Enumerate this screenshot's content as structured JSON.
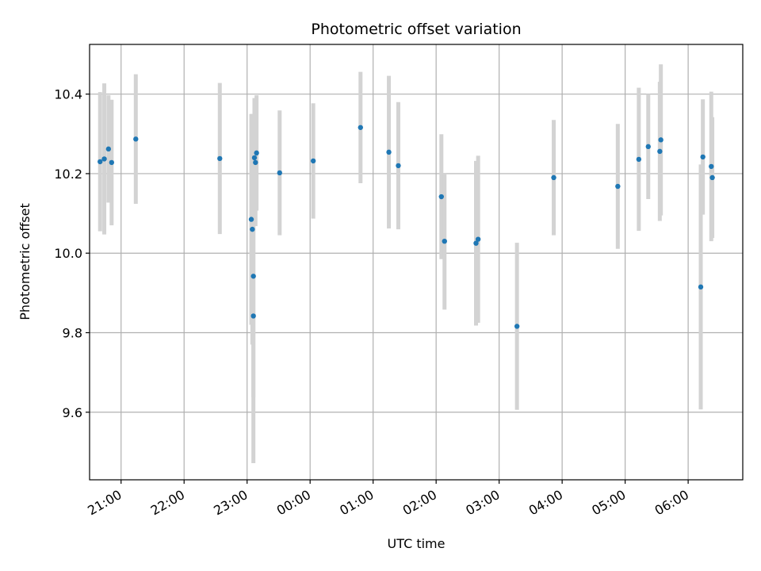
{
  "chart_data": {
    "type": "scatter",
    "title": "Photometric offset variation",
    "xlabel": "UTC time",
    "ylabel": "Photometric offset",
    "grid": true,
    "xlim": [
      "20:30",
      "06:52"
    ],
    "ylim": [
      9.43,
      10.525
    ],
    "x_ticks": [
      "21:00",
      "22:00",
      "23:00",
      "00:00",
      "01:00",
      "02:00",
      "03:00",
      "04:00",
      "05:00",
      "06:00"
    ],
    "y_ticks": [
      9.6,
      9.8,
      10.0,
      10.2,
      10.4
    ],
    "marker_color": "#1f77b4",
    "errorbar_color": "#d3d3d3",
    "points": [
      {
        "time": "20:40",
        "y": 10.23,
        "err": 0.175
      },
      {
        "time": "20:44",
        "y": 10.237,
        "err": 0.19
      },
      {
        "time": "20:48",
        "y": 10.262,
        "err": 0.135
      },
      {
        "time": "20:51",
        "y": 10.228,
        "err": 0.158
      },
      {
        "time": "21:14",
        "y": 10.287,
        "err": 0.163
      },
      {
        "time": "22:34",
        "y": 10.238,
        "err": 0.19
      },
      {
        "time": "23:04",
        "y": 10.085,
        "err": 0.265
      },
      {
        "time": "23:05",
        "y": 10.06,
        "err": 0.29
      },
      {
        "time": "23:06",
        "y": 9.942,
        "err": 0.305
      },
      {
        "time": "23:06",
        "y": 9.842,
        "err": 0.37
      },
      {
        "time": "23:07",
        "y": 10.24,
        "err": 0.15
      },
      {
        "time": "23:08",
        "y": 10.228,
        "err": 0.16
      },
      {
        "time": "23:09",
        "y": 10.252,
        "err": 0.145
      },
      {
        "time": "23:31",
        "y": 10.202,
        "err": 0.157
      },
      {
        "time": "00:03",
        "y": 10.232,
        "err": 0.145
      },
      {
        "time": "00:48",
        "y": 10.316,
        "err": 0.14
      },
      {
        "time": "01:15",
        "y": 10.254,
        "err": 0.192
      },
      {
        "time": "01:24",
        "y": 10.22,
        "err": 0.16
      },
      {
        "time": "02:05",
        "y": 10.142,
        "err": 0.157
      },
      {
        "time": "02:08",
        "y": 10.03,
        "err": 0.172
      },
      {
        "time": "02:38",
        "y": 10.025,
        "err": 0.207
      },
      {
        "time": "02:40",
        "y": 10.035,
        "err": 0.21
      },
      {
        "time": "03:17",
        "y": 9.816,
        "err": 0.21
      },
      {
        "time": "03:52",
        "y": 10.19,
        "err": 0.145
      },
      {
        "time": "04:53",
        "y": 10.168,
        "err": 0.157
      },
      {
        "time": "05:13",
        "y": 10.236,
        "err": 0.18
      },
      {
        "time": "05:22",
        "y": 10.268,
        "err": 0.132
      },
      {
        "time": "05:33",
        "y": 10.256,
        "err": 0.175
      },
      {
        "time": "05:34",
        "y": 10.285,
        "err": 0.19
      },
      {
        "time": "06:12",
        "y": 9.915,
        "err": 0.308
      },
      {
        "time": "06:14",
        "y": 10.242,
        "err": 0.145
      },
      {
        "time": "06:22",
        "y": 10.218,
        "err": 0.188
      },
      {
        "time": "06:23",
        "y": 10.19,
        "err": 0.152
      }
    ]
  }
}
